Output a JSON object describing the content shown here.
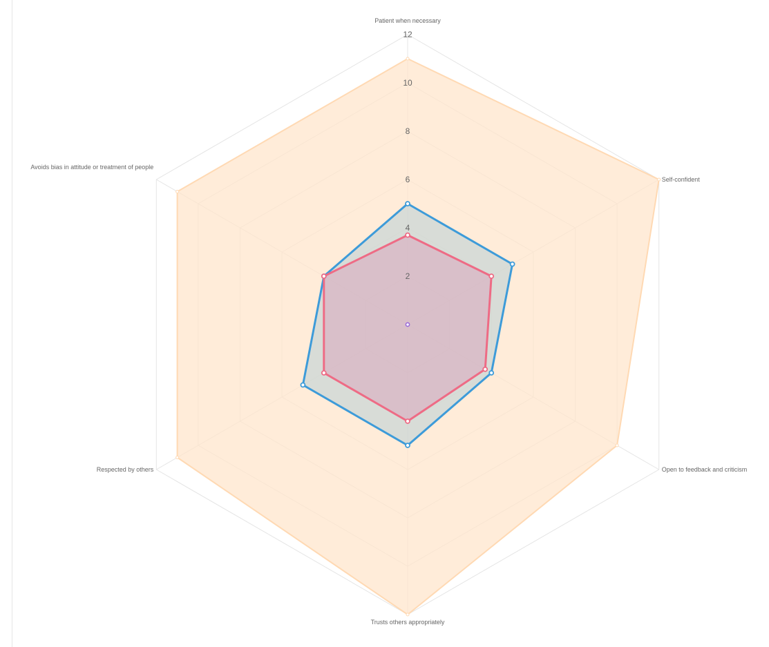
{
  "chart_data": {
    "type": "radar",
    "labels": [
      "Patient when necessary",
      "Self-confident",
      "Open to feedback and criticism",
      "Trusts others appropriately",
      "Respected by others",
      "Avoids bias in attitude or treatment of people"
    ],
    "r_ticks": [
      "2",
      "4",
      "6",
      "8",
      "10",
      "12"
    ],
    "r_range": [
      0,
      12
    ],
    "grid": true,
    "legend": "none",
    "series": [
      {
        "values": [
          11,
          12,
          10,
          12,
          11,
          11
        ],
        "stroke": "#ffd9b3",
        "fill": "#ffe6cc",
        "fill_opacity": 0.75
      },
      {
        "values": [
          5,
          5,
          4,
          5,
          5,
          4
        ],
        "stroke": "#3d9bd9",
        "fill": "#b8cfd6",
        "fill_opacity": 0.55
      },
      {
        "values": [
          3.7,
          4,
          3.7,
          4,
          4,
          4
        ],
        "stroke": "#ee6b85",
        "fill": "#dc9bb7",
        "fill_opacity": 0.45
      }
    ],
    "center_point_color": "#9b6bd9"
  }
}
